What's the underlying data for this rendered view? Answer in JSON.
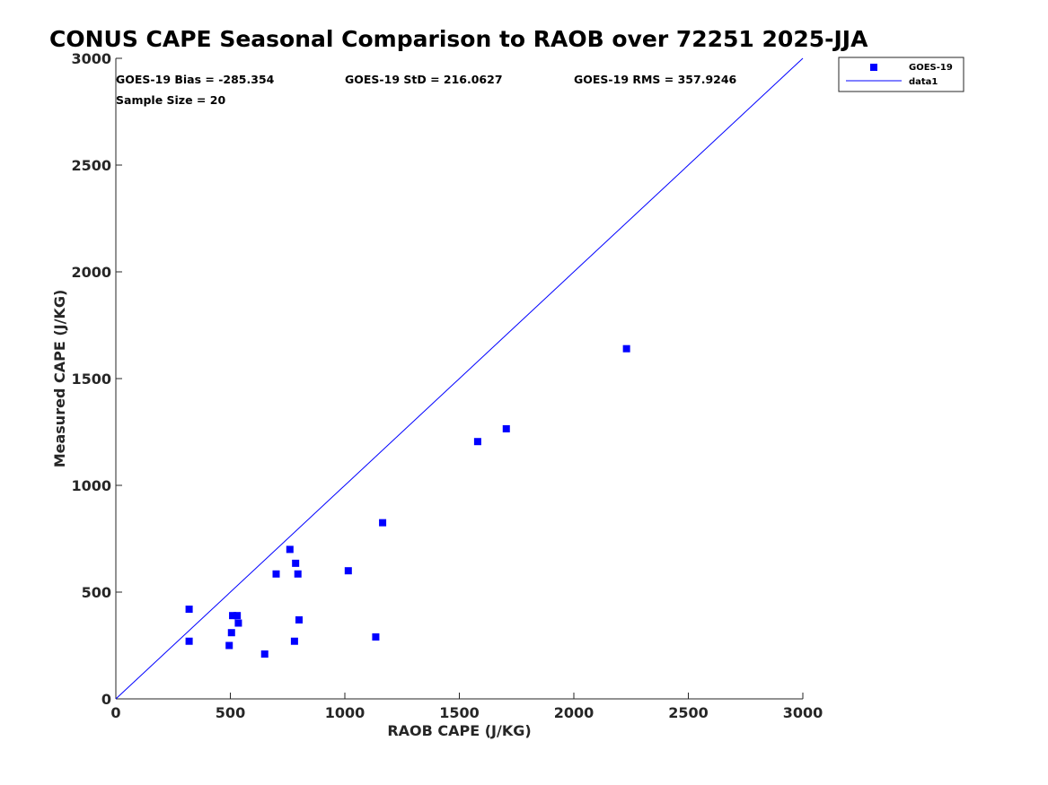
{
  "chart_data": {
    "type": "scatter",
    "title": "CONUS CAPE Seasonal Comparison to RAOB over 72251 2025-JJA",
    "xlabel": "RAOB CAPE (J/KG)",
    "ylabel": "Measured CAPE (J/KG)",
    "xlim": [
      0,
      3000
    ],
    "ylim": [
      0,
      3000
    ],
    "xticks": [
      0,
      500,
      1000,
      1500,
      2000,
      2500,
      3000
    ],
    "yticks": [
      0,
      500,
      1000,
      1500,
      2000,
      2500,
      3000
    ],
    "xtick_labels": [
      "0",
      "500",
      "1000",
      "1500",
      "2000",
      "2500",
      "3000"
    ],
    "ytick_labels": [
      "0",
      "500",
      "1000",
      "1500",
      "2000",
      "2500",
      "3000"
    ],
    "grid": false,
    "legend_position": "top-right",
    "stats": {
      "bias": "GOES-19 Bias = -285.354",
      "std": "GOES-19 StD = 216.0627",
      "rms": "GOES-19 RMS = 357.9246",
      "sample": "Sample Size = 20"
    },
    "series": [
      {
        "name": "GOES-19",
        "kind": "scatter",
        "marker": "square",
        "color": "#0000ff",
        "points": [
          [
            320,
            420
          ],
          [
            320,
            270
          ],
          [
            495,
            250
          ],
          [
            505,
            310
          ],
          [
            510,
            390
          ],
          [
            530,
            390
          ],
          [
            535,
            355
          ],
          [
            650,
            210
          ],
          [
            700,
            585
          ],
          [
            760,
            700
          ],
          [
            780,
            270
          ],
          [
            785,
            635
          ],
          [
            795,
            585
          ],
          [
            800,
            370
          ],
          [
            1015,
            600
          ],
          [
            1135,
            290
          ],
          [
            1165,
            825
          ],
          [
            1580,
            1205
          ],
          [
            1705,
            1265
          ],
          [
            2230,
            1640
          ]
        ]
      },
      {
        "name": "data1",
        "kind": "line",
        "color": "#0000ff",
        "points": [
          [
            0,
            0
          ],
          [
            3000,
            3000
          ]
        ]
      }
    ]
  }
}
